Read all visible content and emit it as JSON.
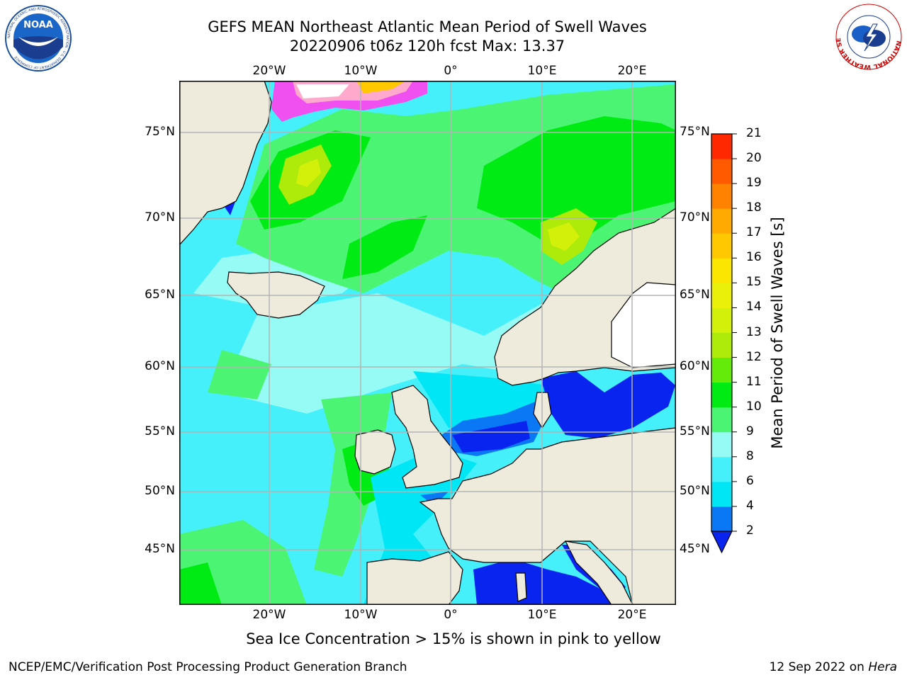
{
  "title": {
    "line1": "GEFS MEAN Northeast Atlantic Mean Period of Swell Waves",
    "line2": "20220906 t06z 120h fcst   Max: 13.37"
  },
  "map": {
    "lon_labels": [
      "20°W",
      "10°W",
      "0°",
      "10°E",
      "20°E"
    ],
    "lat_labels": [
      "75°N",
      "70°N",
      "65°N",
      "60°N",
      "55°N",
      "50°N",
      "45°N"
    ],
    "extent": {
      "lon": [
        -29.5,
        24.5
      ],
      "lat": [
        41,
        78
      ]
    },
    "ocean_field": "mean swell period",
    "sea_ice": "pink to yellow"
  },
  "colorbar": {
    "title": "Mean Period of Swell Waves [s]",
    "ticks": [
      "2",
      "4",
      "6",
      "8",
      "9",
      "10",
      "11",
      "12",
      "13",
      "14",
      "15",
      "16",
      "17",
      "18",
      "19",
      "20",
      "21"
    ],
    "colors": [
      "#0a24f0",
      "#0a78f5",
      "#00e6f5",
      "#46f0fa",
      "#96faf5",
      "#4bf573",
      "#00eb14",
      "#64eb0a",
      "#afeb0a",
      "#d2f00a",
      "#ebf00a",
      "#fae600",
      "#ffc800",
      "#ffaa00",
      "#ff8200",
      "#ff5a00",
      "#ff2800",
      "#f50000"
    ],
    "extend": "min"
  },
  "caption": "Sea Ice Concentration > 15% is shown in pink to yellow",
  "footer": {
    "left": "NCEP/EMC/Verification Post Processing Product Generation Branch",
    "right_date": "12 Sep 2022 on ",
    "right_host": "Hera"
  },
  "logos": {
    "noaa": {
      "text": "NOAA",
      "ring": "NATIONAL OCEANIC AND ATMOSPHERIC ADMINISTRATION · U.S. DEPARTMENT OF COMMERCE"
    },
    "nws": {
      "ring": "NATIONAL WEATHER SERVICE"
    }
  }
}
